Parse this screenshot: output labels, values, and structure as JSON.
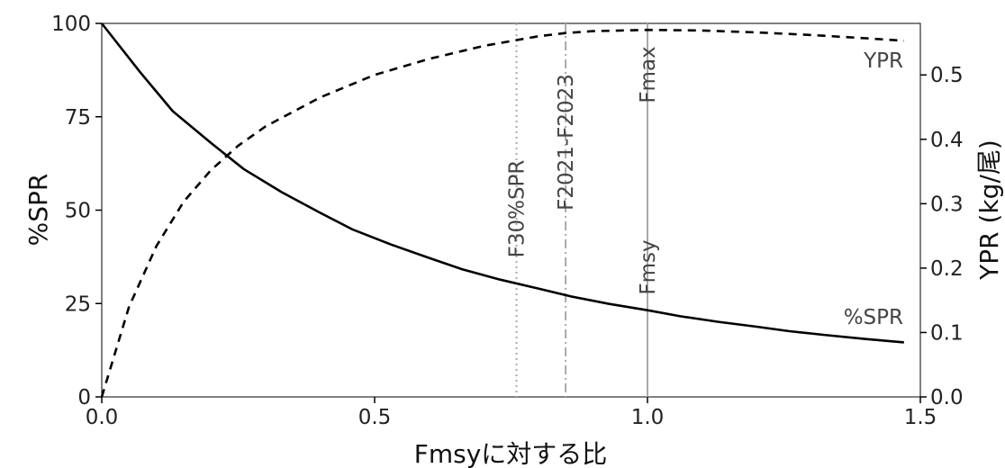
{
  "chart_data": {
    "type": "line",
    "xlabel": "Fmsyに対する比",
    "ylabel_left": "%SPR",
    "ylabel_right": "YPR (kg/尾)",
    "xlim": [
      0,
      1.5
    ],
    "ylim_left": [
      0,
      100
    ],
    "ylim_right": [
      0,
      0.58
    ],
    "x_ticks": [
      "0.0",
      "0.5",
      "1.0",
      "1.5"
    ],
    "y_left_ticks": [
      "0",
      "25",
      "50",
      "75",
      "100"
    ],
    "y_right_ticks": [
      "0.0",
      "0.1",
      "0.2",
      "0.3",
      "0.4",
      "0.5"
    ],
    "series": [
      {
        "name": "%SPR",
        "axis": "left",
        "style": "solid",
        "color": "#000000",
        "x": [
          0,
          0.07,
          0.13,
          0.2,
          0.26,
          0.33,
          0.4,
          0.46,
          0.53,
          0.6,
          0.66,
          0.73,
          0.8,
          0.86,
          0.93,
          1.0,
          1.06,
          1.13,
          1.2,
          1.26,
          1.33,
          1.4,
          1.47
        ],
        "values": [
          100,
          87,
          76.5,
          68,
          61,
          54.8,
          49.3,
          44.8,
          40.8,
          37.2,
          34.2,
          31.4,
          29,
          26.9,
          24.9,
          23.2,
          21.6,
          20.1,
          18.8,
          17.6,
          16.5,
          15.5,
          14.6
        ]
      },
      {
        "name": "YPR",
        "axis": "right",
        "style": "dashed",
        "color": "#000000",
        "x": [
          0,
          0.05,
          0.1,
          0.15,
          0.2,
          0.25,
          0.3,
          0.4,
          0.5,
          0.6,
          0.7,
          0.8,
          0.85,
          0.9,
          1.0,
          1.1,
          1.2,
          1.3,
          1.4,
          1.47
        ],
        "values": [
          0,
          0.14,
          0.234,
          0.303,
          0.352,
          0.39,
          0.42,
          0.465,
          0.5,
          0.525,
          0.545,
          0.56,
          0.565,
          0.568,
          0.57,
          0.569,
          0.566,
          0.562,
          0.557,
          0.553
        ]
      }
    ],
    "reference_lines": [
      {
        "label": "F30%SPR",
        "x": 0.76,
        "style": "dotted",
        "color": "#aaaaaa"
      },
      {
        "label": "F2021-F2023",
        "x": 0.85,
        "style": "dashdot",
        "color": "#aaaaaa"
      },
      {
        "label": "Fmsy",
        "x": 1.0,
        "style": "solid",
        "color": "#aaaaaa"
      },
      {
        "label": "Fmax",
        "x": 1.0,
        "style": "solid",
        "color": "#aaaaaa"
      }
    ],
    "grid": false
  }
}
